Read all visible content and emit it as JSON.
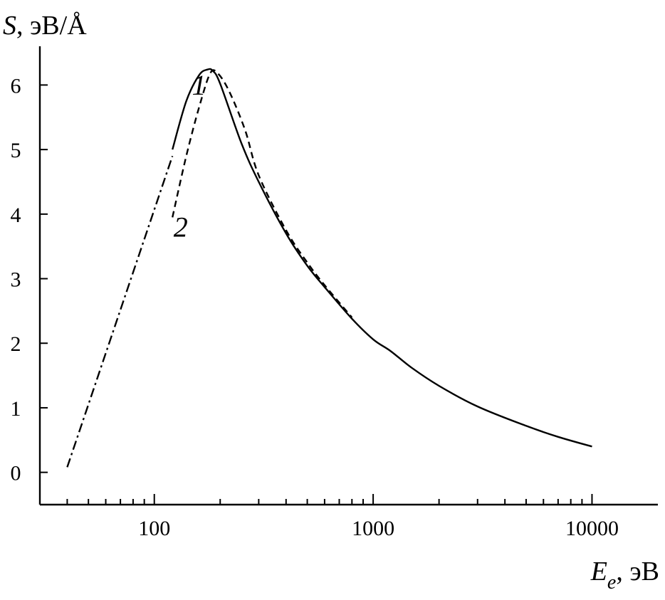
{
  "chart_data": {
    "type": "line",
    "xscale": "log",
    "xlim": [
      30,
      20000
    ],
    "ylim": [
      -0.5,
      6.6
    ],
    "grid": false,
    "xlabel": {
      "symbol": "E",
      "subscript": "e",
      "unit": ", эВ"
    },
    "ylabel": {
      "symbol": "S",
      "unit": ", эВ/Å"
    },
    "xticks": [
      {
        "value": 100,
        "label": "100"
      },
      {
        "value": 1000,
        "label": "1000"
      },
      {
        "value": 10000,
        "label": "10000"
      }
    ],
    "x_minor_ticks": [
      40,
      50,
      60,
      70,
      80,
      90,
      200,
      300,
      400,
      500,
      600,
      700,
      800,
      900,
      2000,
      3000,
      4000,
      5000,
      6000,
      7000,
      8000,
      9000
    ],
    "yticks": [
      {
        "value": 0,
        "label": "0"
      },
      {
        "value": 1,
        "label": "1"
      },
      {
        "value": 2,
        "label": "2"
      },
      {
        "value": 3,
        "label": "3"
      },
      {
        "value": 4,
        "label": "4"
      },
      {
        "value": 5,
        "label": "5"
      },
      {
        "value": 6,
        "label": "6"
      }
    ],
    "series": [
      {
        "name": "1",
        "style": "solid",
        "x": [
          121,
          140,
          160,
          175,
          185,
          200,
          250,
          300,
          400,
          500,
          600,
          800,
          1000,
          1200,
          1500,
          2000,
          3000,
          5000,
          7000,
          10000
        ],
        "y": [
          5.0,
          5.75,
          6.15,
          6.24,
          6.22,
          6.02,
          5.1,
          4.5,
          3.7,
          3.2,
          2.87,
          2.38,
          2.06,
          1.88,
          1.62,
          1.34,
          1.02,
          0.72,
          0.55,
          0.4
        ],
        "label_at": {
          "x": 160,
          "y": 5.85
        }
      },
      {
        "name": "2",
        "style": "dashed",
        "x": [
          121,
          140,
          160,
          180,
          195,
          220,
          260,
          300,
          400,
          500,
          600,
          800
        ],
        "y": [
          3.95,
          4.9,
          5.65,
          6.18,
          6.18,
          5.9,
          5.3,
          4.6,
          3.75,
          3.25,
          2.9,
          2.4
        ],
        "label_at": {
          "x": 132,
          "y": 3.65
        }
      },
      {
        "style": "dashdot",
        "x": [
          40,
          121
        ],
        "y": [
          0.08,
          4.9
        ]
      }
    ]
  }
}
